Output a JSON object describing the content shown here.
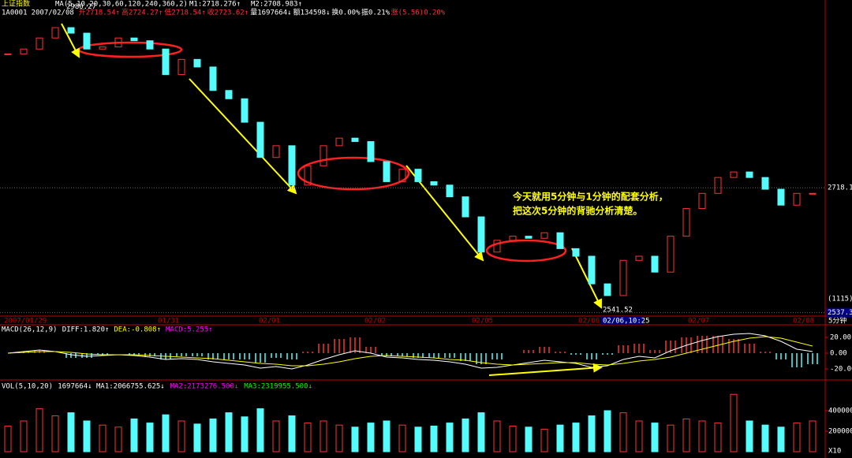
{
  "header": {
    "title": "上证指数",
    "ma_params": "MA(5,10,20,30,60,120,240,360,2)",
    "m1": "M1:2718.276↑",
    "m2": "M2:2708.983↑"
  },
  "quote": [
    "1A0001",
    "2007/02/08",
    "开2718.54↑",
    "高2724.27↑",
    "低2718.54↑",
    "收2723.62↑",
    "量1697664↓",
    "额134598↓",
    "换0.00%",
    "振0.21%",
    "涨(5.56)0.20%"
  ],
  "time_axis": {
    "labels": [
      "2007/01/29",
      "01/31",
      "02/01",
      "02/02",
      "02/05",
      "02/06",
      "02/07",
      "02/08"
    ],
    "cursor": "02/06,10:25",
    "period": "5分钟"
  },
  "chart_data": [
    {
      "type": "candlestick",
      "name": "price",
      "closes": [
        2912,
        2919,
        2935,
        2950,
        2942,
        2919,
        2922,
        2935,
        2931,
        2919,
        2882,
        2904,
        2893,
        2859,
        2847,
        2813,
        2762,
        2779,
        2722,
        2750,
        2779,
        2790,
        2785,
        2756,
        2727,
        2745,
        2727,
        2722,
        2705,
        2676,
        2625,
        2642,
        2648,
        2645,
        2653,
        2630,
        2619,
        2579,
        2562,
        2613,
        2619,
        2596,
        2648,
        2688,
        2710,
        2733,
        2741,
        2733,
        2716,
        2693,
        2710,
        2710
      ],
      "up_color": "#ff3232",
      "down_color": "#54fcfc",
      "ylim": [
        2530,
        2990
      ],
      "yticks": [
        2718.1,
        {
          "value": 2537.3,
          "label": "2537.30"
        }
      ],
      "high": 2980.27,
      "low": 2541.52,
      "count": "(1115)",
      "note": [
        "今天就用5分钟与1分钟的配套分析，",
        "把这次5分钟的背驰分析清楚。"
      ]
    },
    {
      "type": "macd",
      "name": "macd",
      "legend": [
        "MACD(26,12,9)",
        "DIFF:1.820↑",
        "DEA:-0.808↑",
        "MACD:5.255↑"
      ],
      "series": [
        {
          "name": "DIFF",
          "color": "#ffffff",
          "values": [
            0,
            2,
            4,
            2,
            -2,
            -4,
            -3,
            -2,
            -3,
            -5,
            -8,
            -7,
            -8,
            -11,
            -13,
            -15,
            -19,
            -17,
            -20,
            -15,
            -8,
            -2,
            3,
            0,
            -5,
            -6,
            -8,
            -9,
            -11,
            -14,
            -19,
            -18,
            -15,
            -12,
            -9,
            -11,
            -13,
            -18,
            -16,
            -8,
            -4,
            -6,
            3,
            10,
            16,
            21,
            24,
            25,
            22,
            15,
            5,
            2
          ]
        },
        {
          "name": "DEA",
          "color": "#ffff00",
          "values": [
            0,
            1,
            2,
            2,
            1,
            -1,
            -2,
            -2,
            -2,
            -3,
            -4,
            -5,
            -6,
            -7,
            -9,
            -11,
            -13,
            -14,
            -16,
            -16,
            -14,
            -11,
            -7,
            -4,
            -3,
            -4,
            -5,
            -6,
            -8,
            -9,
            -12,
            -14,
            -15,
            -14,
            -13,
            -12,
            -12,
            -14,
            -15,
            -13,
            -10,
            -8,
            -5,
            0,
            5,
            10,
            15,
            19,
            21,
            19,
            14,
            9
          ]
        }
      ],
      "hist": [
        0,
        2,
        4,
        0,
        -6,
        -6,
        -2,
        0,
        -2,
        -4,
        -8,
        -4,
        -4,
        -8,
        -8,
        -8,
        -12,
        -6,
        -8,
        2,
        12,
        18,
        20,
        8,
        -4,
        -4,
        -6,
        -6,
        -6,
        -10,
        -14,
        -8,
        0,
        4,
        8,
        2,
        -2,
        -8,
        -2,
        10,
        12,
        4,
        16,
        20,
        22,
        22,
        18,
        12,
        2,
        -8,
        -18,
        -14
      ],
      "ylim": [
        -32,
        32
      ],
      "yticks": [
        {
          "value": 20,
          "label": "20.00"
        },
        {
          "value": 0,
          "label": "0.00"
        },
        {
          "value": -20,
          "label": "-20.00"
        }
      ]
    },
    {
      "type": "volume",
      "name": "volume",
      "legend": [
        "VOL(5,10,20)",
        "1697664↓",
        "MA1:2066755.625↓",
        "MA2:2173276.500↓",
        "MA3:2319955.500↓"
      ],
      "values": [
        250000,
        300000,
        420000,
        350000,
        380000,
        300000,
        260000,
        240000,
        320000,
        280000,
        360000,
        300000,
        270000,
        320000,
        380000,
        340000,
        420000,
        300000,
        350000,
        280000,
        300000,
        260000,
        240000,
        280000,
        300000,
        260000,
        240000,
        250000,
        280000,
        320000,
        380000,
        300000,
        250000,
        240000,
        220000,
        260000,
        280000,
        350000,
        400000,
        380000,
        300000,
        280000,
        260000,
        320000,
        300000,
        280000,
        560000,
        300000,
        260000,
        240000,
        280000,
        300000
      ],
      "ylim": [
        0,
        700000
      ],
      "yticks": [
        400000,
        200000
      ],
      "unit": "X10"
    }
  ]
}
